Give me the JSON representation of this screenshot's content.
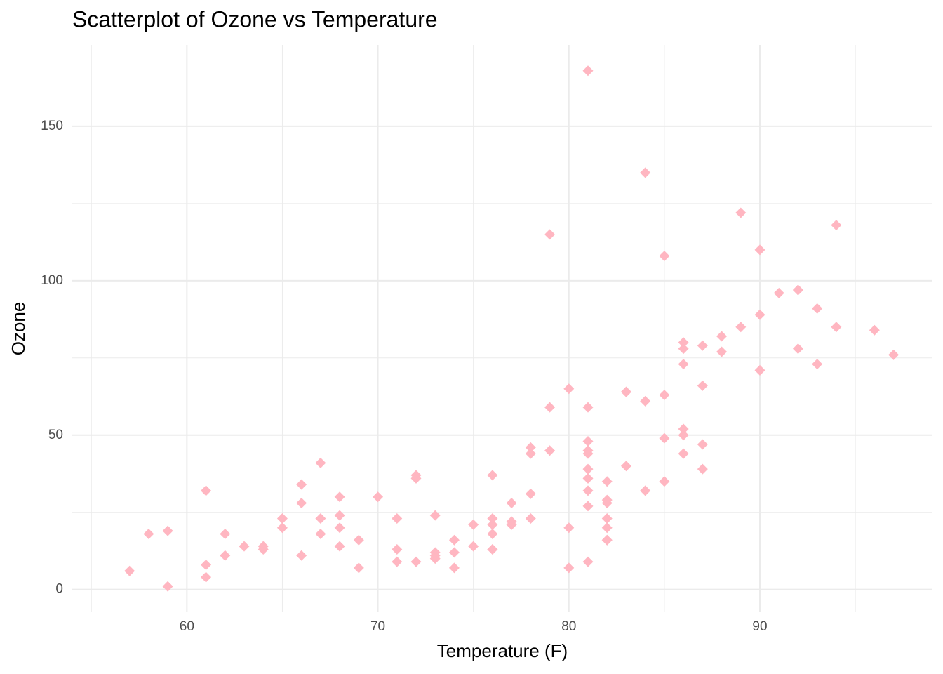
{
  "chart_data": {
    "type": "scatter",
    "title": "Scatterplot of Ozone vs Temperature",
    "x_label": "Temperature (F)",
    "y_label": "Ozone",
    "color": "#ffb6c1",
    "marker": "diamond",
    "grid": true,
    "xlim": [
      54,
      99
    ],
    "ylim": [
      -7.35,
      176.35
    ],
    "xticks": [
      60,
      70,
      80,
      90
    ],
    "yticks": [
      0,
      50,
      100,
      150
    ],
    "x_minor_ticks": [
      55,
      65,
      75,
      85,
      95
    ],
    "y_minor_ticks": [
      25,
      75,
      125
    ],
    "x": [
      67,
      72,
      74,
      62,
      66,
      65,
      59,
      61,
      74,
      69,
      66,
      68,
      58,
      64,
      66,
      57,
      68,
      62,
      59,
      73,
      61,
      61,
      67,
      81,
      79,
      76,
      82,
      90,
      87,
      82,
      77,
      72,
      65,
      73,
      76,
      84,
      85,
      81,
      83,
      83,
      88,
      92,
      92,
      89,
      73,
      81,
      80,
      81,
      82,
      84,
      87,
      85,
      74,
      86,
      85,
      82,
      86,
      88,
      86,
      83,
      81,
      81,
      81,
      82,
      86,
      85,
      87,
      89,
      90,
      90,
      86,
      82,
      80,
      77,
      79,
      76,
      78,
      78,
      77,
      72,
      79,
      81,
      86,
      97,
      94,
      96,
      94,
      91,
      92,
      93,
      93,
      87,
      84,
      80,
      78,
      75,
      73,
      81,
      76,
      77,
      71,
      71,
      78,
      67,
      76,
      68,
      82,
      64,
      71,
      81,
      69,
      63,
      70,
      75,
      76,
      68
    ],
    "y": [
      41,
      36,
      12,
      18,
      28,
      23,
      19,
      8,
      7,
      16,
      11,
      14,
      18,
      14,
      34,
      6,
      30,
      11,
      1,
      11,
      4,
      32,
      23,
      45,
      115,
      37,
      29,
      71,
      39,
      23,
      21,
      37,
      20,
      12,
      13,
      135,
      49,
      32,
      64,
      40,
      77,
      97,
      97,
      85,
      10,
      27,
      7,
      48,
      35,
      61,
      79,
      63,
      16,
      80,
      108,
      20,
      52,
      82,
      50,
      64,
      59,
      39,
      9,
      16,
      78,
      35,
      66,
      122,
      89,
      110,
      44,
      28,
      65,
      22,
      59,
      23,
      31,
      44,
      21,
      9,
      45,
      168,
      73,
      76,
      118,
      84,
      85,
      96,
      78,
      73,
      91,
      47,
      32,
      20,
      23,
      21,
      24,
      44,
      21,
      28,
      9,
      13,
      46,
      18,
      13,
      24,
      16,
      13,
      23,
      36,
      7,
      14,
      30,
      14,
      18,
      20
    ]
  }
}
